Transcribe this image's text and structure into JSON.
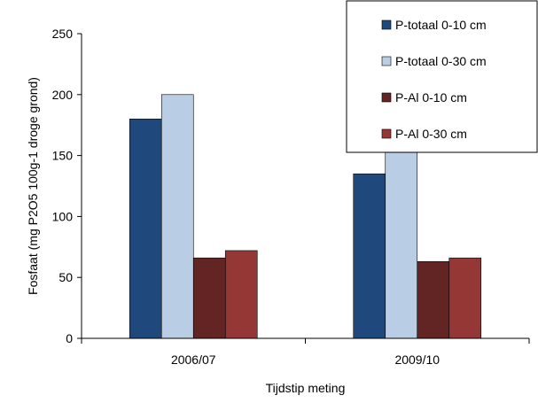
{
  "chart_data": {
    "type": "bar",
    "title": "",
    "xlabel": "Tijdstip meting",
    "ylabel": "Fosfaat  (mg P2O5 100g-1  droge grond)",
    "categories": [
      "2006/07",
      "2009/10"
    ],
    "ylim": [
      0,
      250
    ],
    "yticks": [
      0,
      50,
      100,
      150,
      200,
      250
    ],
    "grid": false,
    "legend_position": "top-right",
    "series": [
      {
        "name": "P-totaal 0-10 cm",
        "color": "#1f497d",
        "values": [
          180,
          135
        ]
      },
      {
        "name": "P-totaal 0-30 cm",
        "color": "#b9cde5",
        "values": [
          200,
          174
        ]
      },
      {
        "name": "P-Al 0-10 cm",
        "color": "#632523",
        "values": [
          66,
          63
        ]
      },
      {
        "name": "P-Al 0-30 cm",
        "color": "#953735",
        "values": [
          72,
          66
        ]
      }
    ]
  }
}
